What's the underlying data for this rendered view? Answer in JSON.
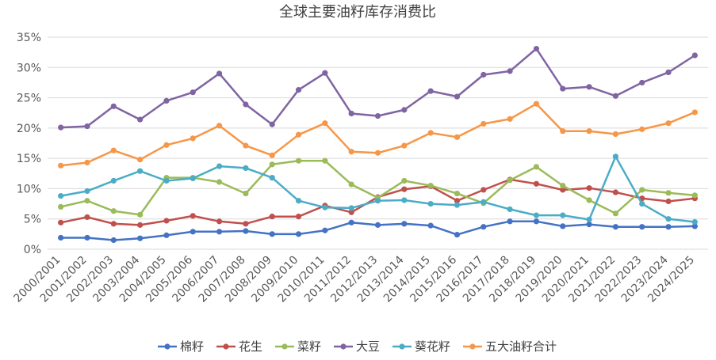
{
  "chart_data": {
    "type": "line",
    "title": "全球主要油籽库存消费比",
    "xlabel": "",
    "ylabel": "",
    "ylim": [
      0,
      35
    ],
    "yticks": [
      "0%",
      "5%",
      "10%",
      "15%",
      "20%",
      "25%",
      "30%",
      "35%"
    ],
    "grid": true,
    "legend_position": "bottom",
    "categories": [
      "2000/2001",
      "2001/2002",
      "2002/2003",
      "2003/2004",
      "2004/2005",
      "2005/2006",
      "2006/2007",
      "2007/2008",
      "2008/2009",
      "2009/2010",
      "2010/2011",
      "2011/2012",
      "2012/2013",
      "2013/2014",
      "2014/2015",
      "2015/2016",
      "2016/2017",
      "2017/2018",
      "2018/2019",
      "2019/2020",
      "2020/2021",
      "2021/2022",
      "2022/2023",
      "2023/2024",
      "2024/2025"
    ],
    "series": [
      {
        "name": "棉籽",
        "color": "#4472c4",
        "values": [
          1.9,
          1.9,
          1.5,
          1.8,
          2.3,
          2.9,
          2.9,
          3.0,
          2.5,
          2.5,
          3.1,
          4.4,
          4.0,
          4.2,
          3.9,
          2.4,
          3.7,
          4.6,
          4.6,
          3.8,
          4.1,
          3.7,
          3.7,
          3.7,
          3.8
        ]
      },
      {
        "name": "花生",
        "color": "#c0504d",
        "values": [
          4.4,
          5.3,
          4.2,
          4.0,
          4.7,
          5.5,
          4.6,
          4.2,
          5.4,
          5.4,
          7.2,
          6.1,
          8.6,
          9.9,
          10.4,
          8.0,
          9.8,
          11.5,
          10.8,
          9.8,
          10.1,
          9.4,
          8.4,
          7.9,
          8.4
        ]
      },
      {
        "name": "菜籽",
        "color": "#9bbb59",
        "values": [
          7.0,
          8.0,
          6.3,
          5.7,
          11.8,
          11.8,
          11.1,
          9.2,
          14.0,
          14.6,
          14.6,
          10.7,
          8.5,
          11.3,
          10.5,
          9.2,
          7.6,
          11.4,
          13.6,
          10.5,
          8.1,
          5.9,
          9.8,
          9.3,
          8.9
        ]
      },
      {
        "name": "大豆",
        "color": "#8064a2",
        "values": [
          20.1,
          20.3,
          23.6,
          21.4,
          24.5,
          25.9,
          29.0,
          23.9,
          20.6,
          26.3,
          29.1,
          22.4,
          22.0,
          23.0,
          26.1,
          25.2,
          28.8,
          29.4,
          33.1,
          26.5,
          26.8,
          25.3,
          27.5,
          29.2,
          32.0
        ]
      },
      {
        "name": "葵花籽",
        "color": "#4bacc6",
        "values": [
          8.8,
          9.6,
          11.3,
          12.9,
          11.3,
          11.7,
          13.7,
          13.4,
          11.8,
          8.0,
          6.9,
          6.8,
          8.0,
          8.1,
          7.5,
          7.3,
          7.8,
          6.6,
          5.6,
          5.6,
          4.9,
          15.3,
          7.5,
          5.0,
          4.5
        ]
      },
      {
        "name": "五大油籽合计",
        "color": "#f79646",
        "values": [
          13.8,
          14.3,
          16.3,
          14.8,
          17.2,
          18.3,
          20.4,
          17.1,
          15.5,
          18.9,
          20.8,
          16.1,
          15.9,
          17.1,
          19.2,
          18.5,
          20.7,
          21.5,
          24.0,
          19.5,
          19.5,
          19.0,
          19.8,
          20.8,
          22.6
        ]
      }
    ]
  }
}
